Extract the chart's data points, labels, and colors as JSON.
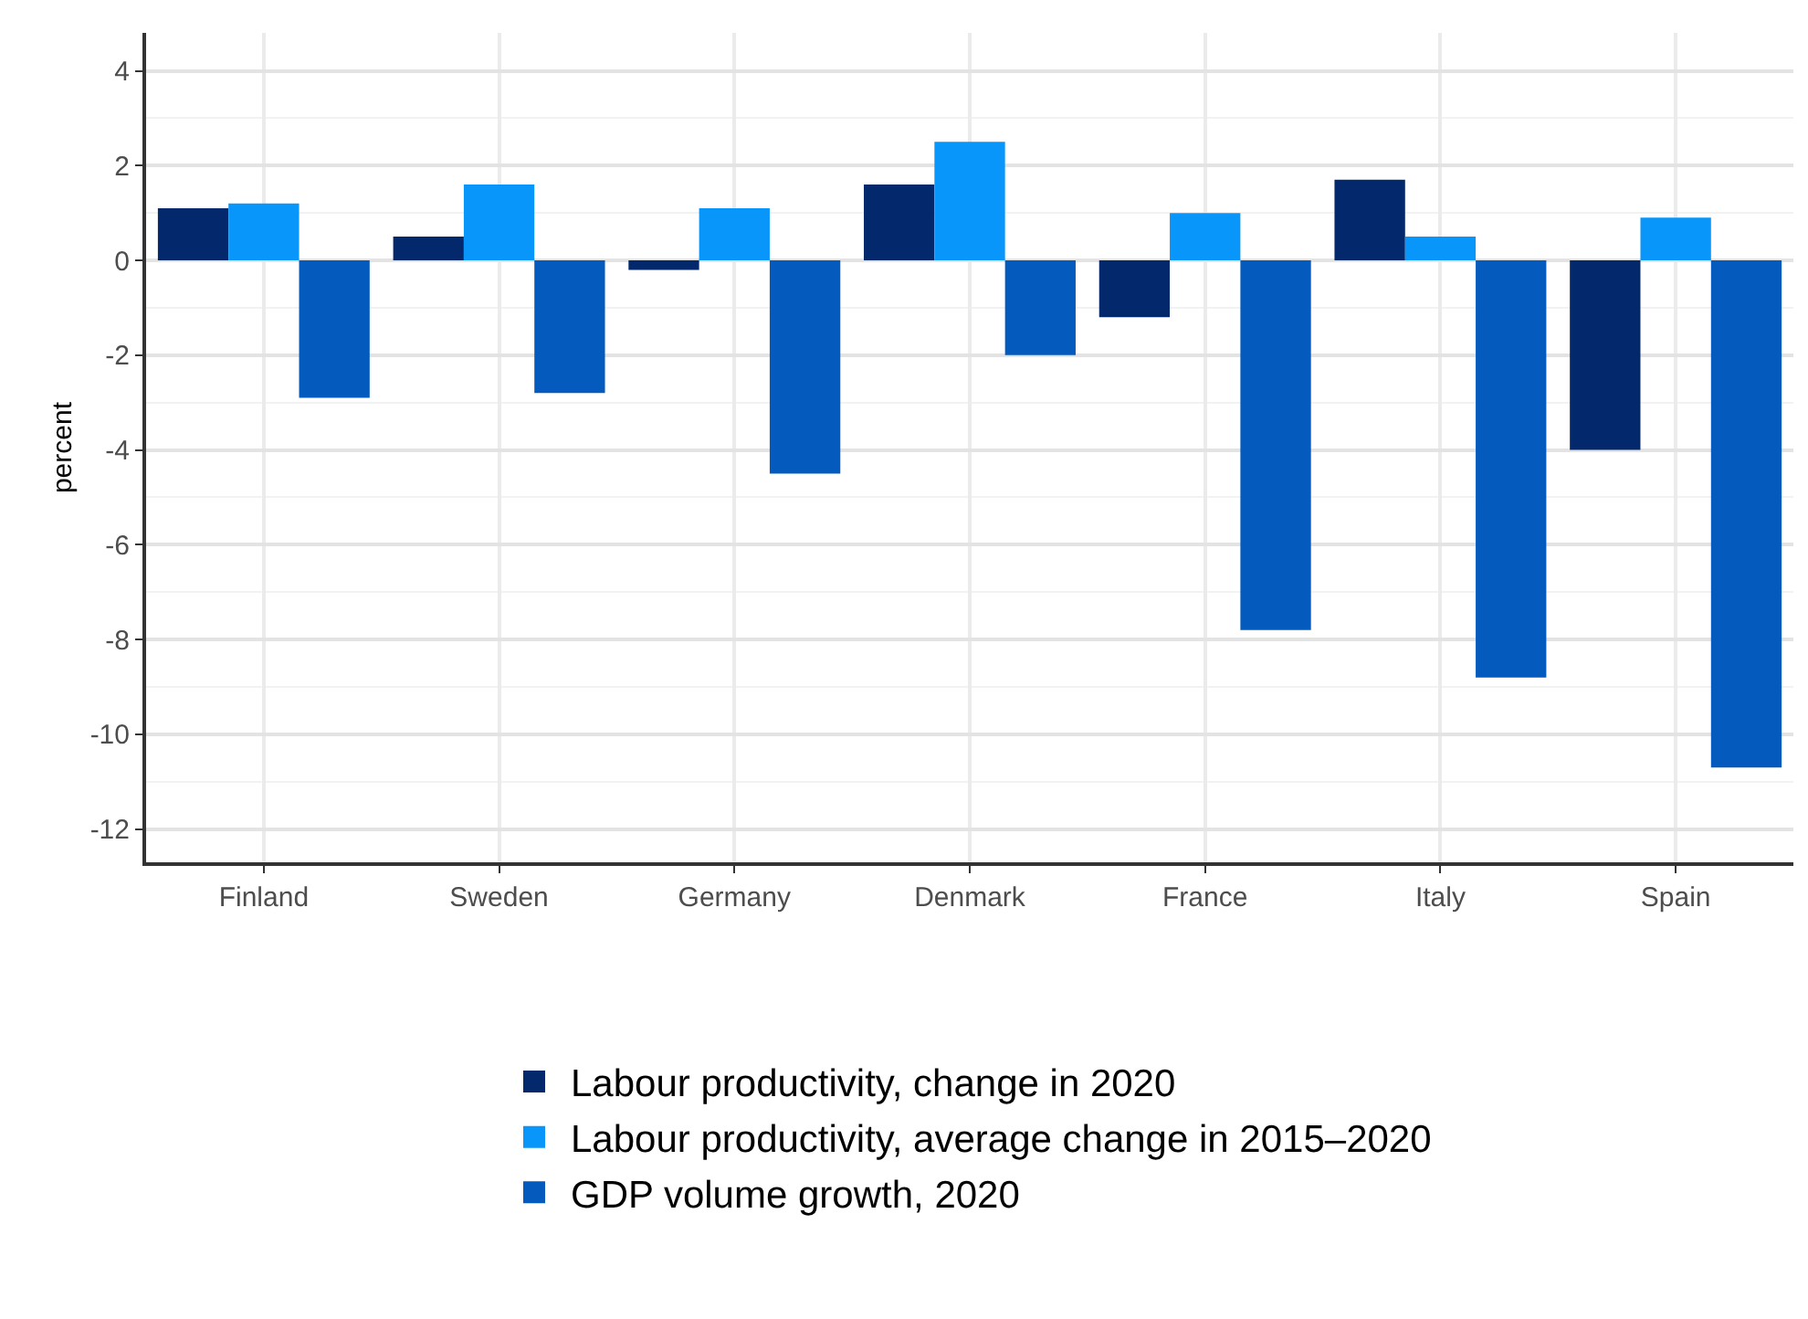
{
  "chart_data": {
    "type": "bar",
    "ylabel": "percent",
    "categories": [
      "Finland",
      "Sweden",
      "Germany",
      "Denmark",
      "France",
      "Italy",
      "Spain"
    ],
    "series": [
      {
        "name": "Labour productivity, change in 2020",
        "color": "#03286b",
        "values": [
          1.1,
          0.5,
          -0.2,
          1.6,
          -1.2,
          1.7,
          -4.0
        ]
      },
      {
        "name": "Labour productivity, average change in 2015–2020",
        "color": "#0896fb",
        "values": [
          1.2,
          1.6,
          1.1,
          2.5,
          1.0,
          0.5,
          0.9
        ]
      },
      {
        "name": "GDP volume growth, 2020",
        "color": "#045bbd",
        "values": [
          -2.9,
          -2.8,
          -4.5,
          -2.0,
          -7.8,
          -8.8,
          -10.7
        ]
      }
    ],
    "ylim": [
      -12.7,
      4.8
    ],
    "yticks": [
      -12,
      -10,
      -8,
      -6,
      -4,
      -2,
      0,
      2,
      4
    ],
    "grid": true,
    "legend": "bottom"
  }
}
